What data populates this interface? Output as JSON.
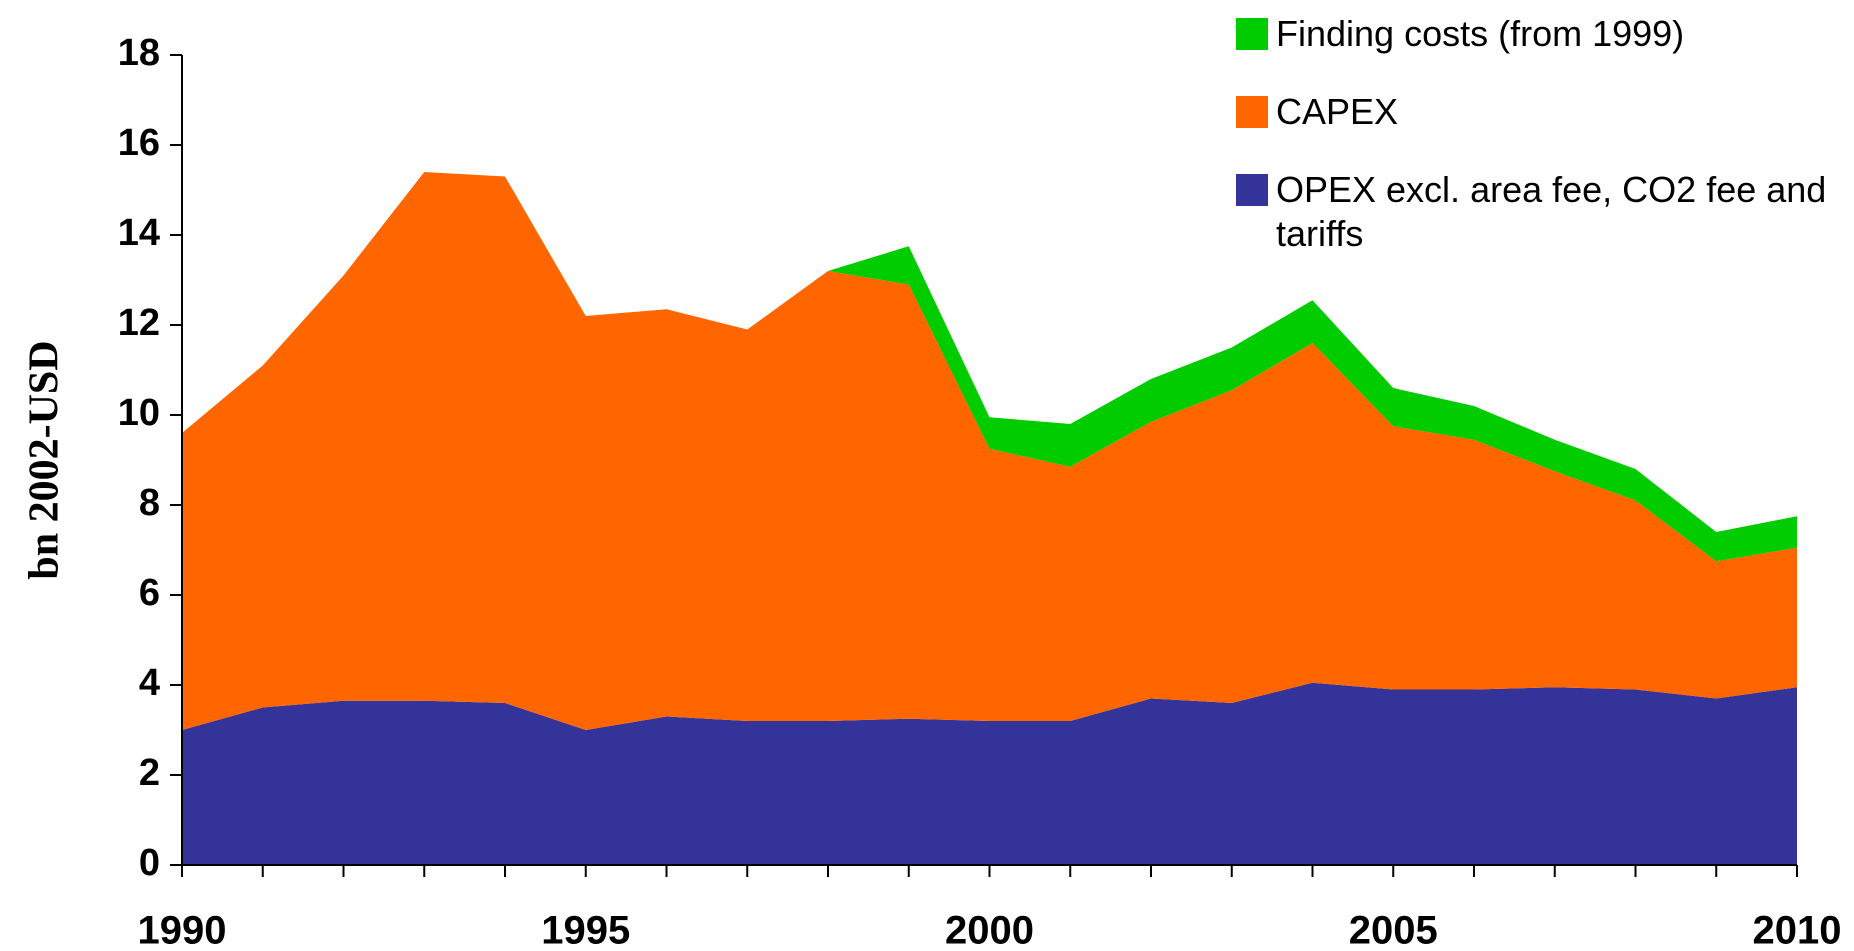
{
  "chart_data": {
    "type": "stacked_area",
    "y_label": "bn 2002-USD",
    "x": [
      1990,
      1991,
      1992,
      1993,
      1994,
      1995,
      1996,
      1997,
      1998,
      1999,
      2000,
      2001,
      2002,
      2003,
      2004,
      2005,
      2006,
      2007,
      2008,
      2009,
      2010
    ],
    "series": [
      {
        "name": "OPEX excl. area fee, CO2 fee and tariffs",
        "color": "#333399",
        "values": [
          3.0,
          3.5,
          3.65,
          3.65,
          3.6,
          3.0,
          3.3,
          3.2,
          3.2,
          3.25,
          3.2,
          3.2,
          3.7,
          3.6,
          4.05,
          3.9,
          3.9,
          3.95,
          3.9,
          3.7,
          3.95
        ]
      },
      {
        "name": "CAPEX",
        "color": "#ff6600",
        "values": [
          6.6,
          7.6,
          9.45,
          11.75,
          11.7,
          9.2,
          9.05,
          8.7,
          10.0,
          9.65,
          6.05,
          5.65,
          6.15,
          6.95,
          7.55,
          5.85,
          5.55,
          4.8,
          4.2,
          3.05,
          3.1
        ]
      },
      {
        "name": "Finding costs (from 1999)",
        "color": "#00cc00",
        "values": [
          null,
          null,
          null,
          null,
          null,
          null,
          null,
          null,
          0,
          0.85,
          0.7,
          0.95,
          0.95,
          0.95,
          0.95,
          0.85,
          0.75,
          0.7,
          0.7,
          0.65,
          0.7
        ]
      }
    ],
    "xlim": [
      1990,
      2010
    ],
    "xticks": [
      1990,
      1995,
      2000,
      2005,
      2010
    ],
    "ylim": [
      0,
      18
    ],
    "yticks": [
      0,
      2,
      4,
      6,
      8,
      10,
      12,
      14,
      16,
      18
    ],
    "grid": false,
    "legend": "upper right"
  }
}
